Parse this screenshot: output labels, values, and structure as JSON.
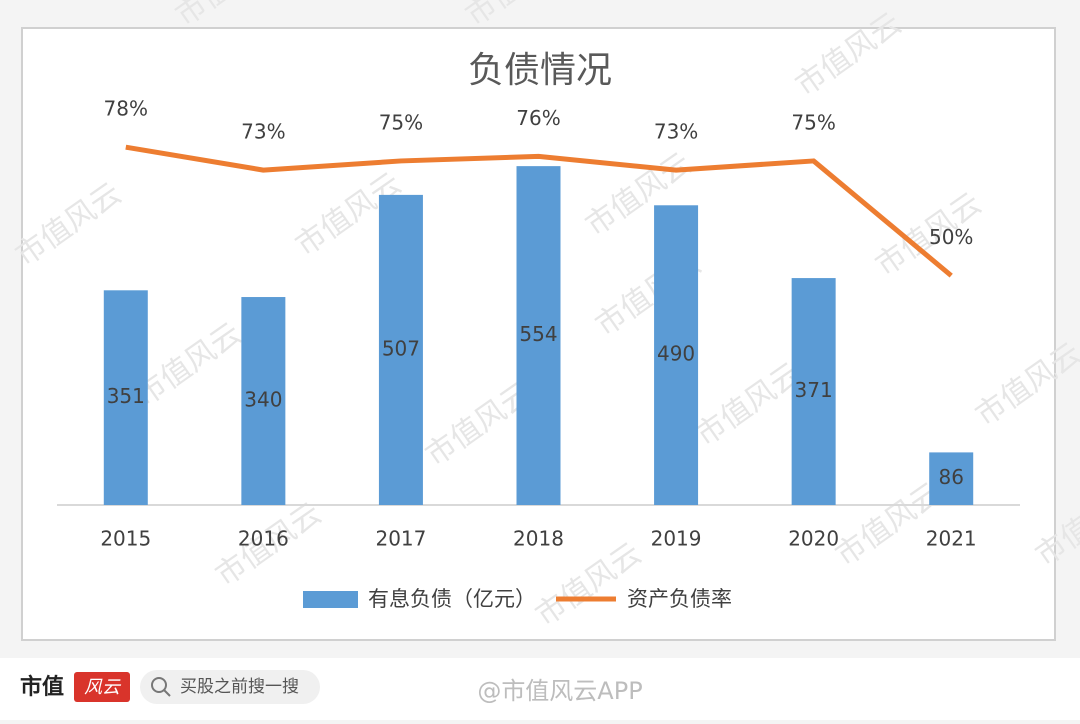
{
  "chart_data": {
    "type": "combo",
    "title": "负债情况",
    "categories": [
      "2015",
      "2016",
      "2017",
      "2018",
      "2019",
      "2020",
      "2021"
    ],
    "series": [
      {
        "name": "有息负债（亿元）",
        "type": "bar",
        "color": "#5b9bd5",
        "values": [
          351,
          340,
          507,
          554,
          490,
          371,
          86
        ]
      },
      {
        "name": "资产负债率",
        "type": "line",
        "axis": "y2",
        "color": "#ed7d31",
        "values": [
          78,
          73,
          75,
          76,
          73,
          75,
          50
        ],
        "value_labels": [
          "78%",
          "73%",
          "75%",
          "76%",
          "73%",
          "75%",
          "50%"
        ]
      }
    ],
    "ylim": [
      0,
      600
    ],
    "y2lim": [
      0,
      80
    ],
    "legend": "bottom"
  },
  "watermark": "市值风云",
  "footer": {
    "brand": "市值",
    "logo": "风云",
    "search": "买股之前搜一搜",
    "account": "@市值风云APP"
  }
}
